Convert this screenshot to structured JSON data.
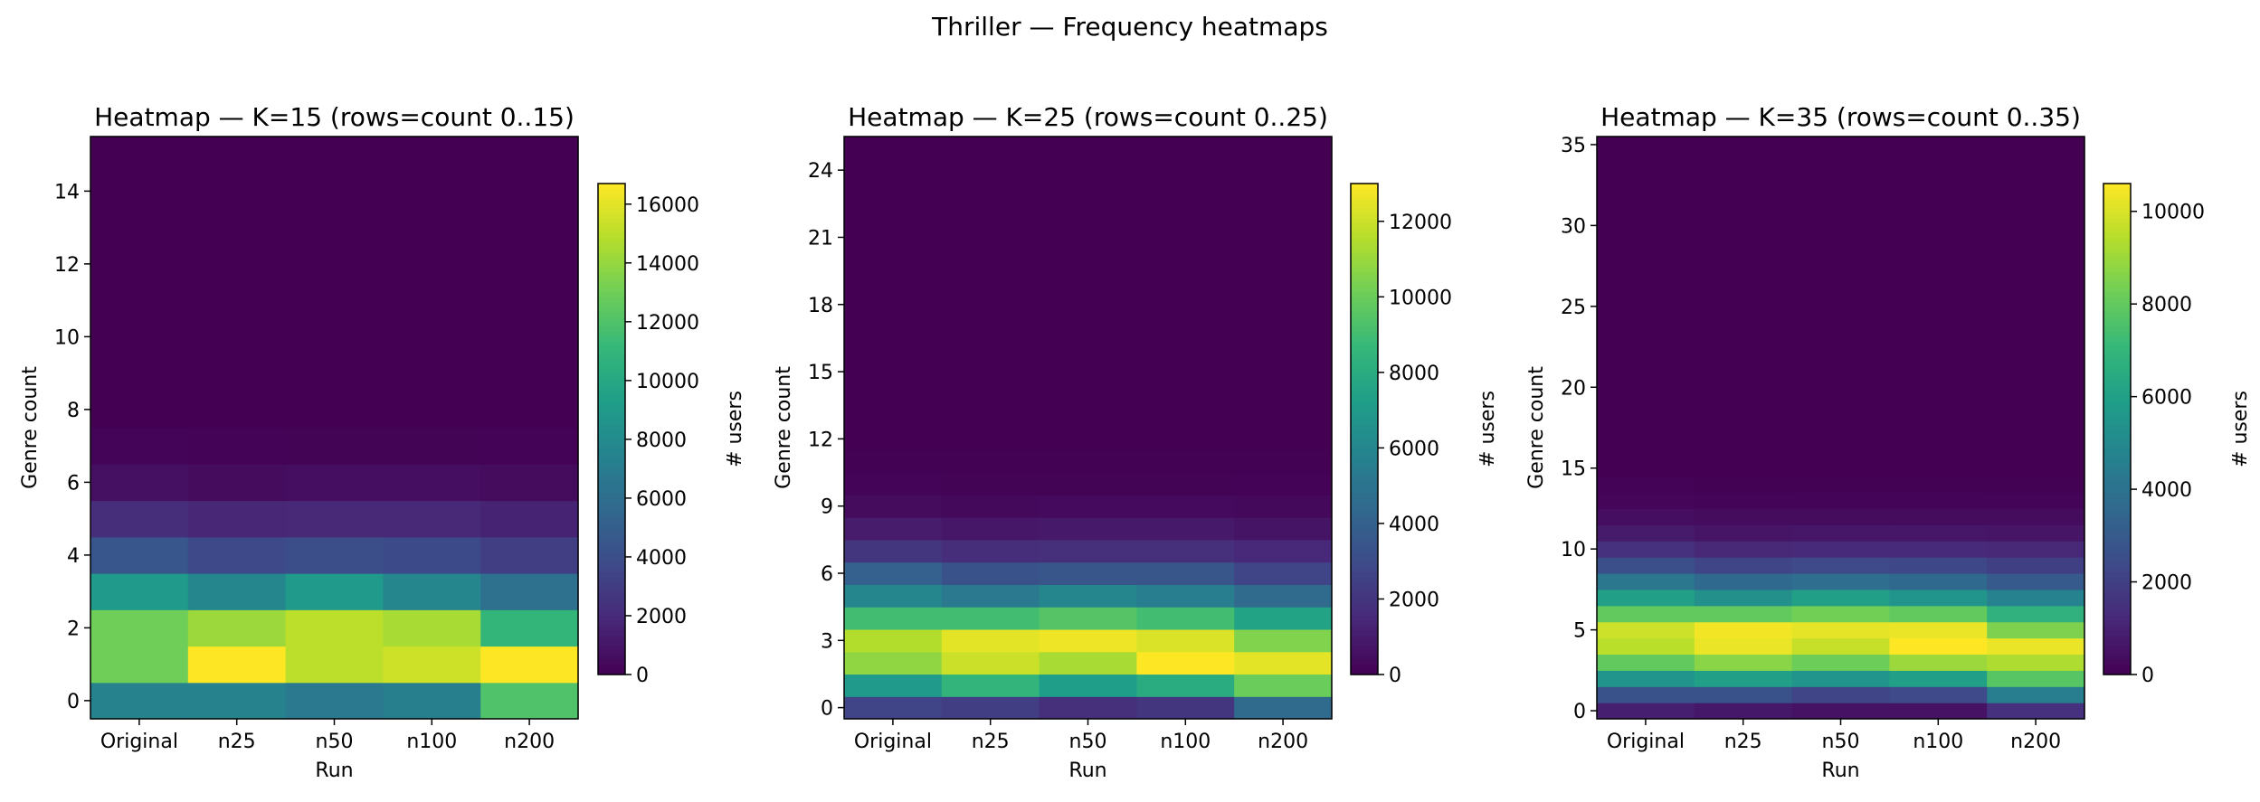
{
  "suptitle": "Thriller — Frequency heatmaps",
  "chart_data": [
    {
      "type": "heatmap",
      "title": "Heatmap — K=15 (rows=count 0..15)",
      "xlabel": "Run",
      "ylabel": "Genre count",
      "colorbar_label": "# users",
      "colormap": "viridis",
      "x_categories": [
        "Original",
        "n25",
        "n50",
        "n100",
        "n200"
      ],
      "y_range": [
        0,
        15
      ],
      "y_ticks": [
        0,
        2,
        4,
        6,
        8,
        10,
        12,
        14
      ],
      "vmin": 0,
      "vmax": 16700,
      "colorbar_ticks": [
        0,
        2000,
        4000,
        6000,
        8000,
        10000,
        12000,
        14000,
        16000
      ],
      "rows": [
        [
          7500,
          7500,
          6800,
          7200,
          12000
        ],
        [
          13000,
          16700,
          15000,
          15500,
          16700
        ],
        [
          13000,
          14200,
          15000,
          14500,
          11000
        ],
        [
          9000,
          7700,
          9000,
          7700,
          6200
        ],
        [
          4500,
          3700,
          4000,
          3800,
          3100
        ],
        [
          2200,
          1800,
          1900,
          1900,
          1600
        ],
        [
          700,
          500,
          600,
          600,
          500
        ],
        [
          150,
          100,
          120,
          120,
          90
        ],
        [
          20,
          15,
          15,
          15,
          10
        ],
        [
          5,
          3,
          3,
          3,
          2
        ],
        [
          1,
          1,
          1,
          1,
          1
        ],
        [
          0,
          0,
          0,
          0,
          0
        ],
        [
          0,
          0,
          0,
          0,
          0
        ],
        [
          0,
          0,
          0,
          0,
          0
        ],
        [
          0,
          0,
          0,
          0,
          0
        ],
        [
          0,
          0,
          0,
          0,
          0
        ]
      ]
    },
    {
      "type": "heatmap",
      "title": "Heatmap — K=25 (rows=count 0..25)",
      "xlabel": "Run",
      "ylabel": "Genre count",
      "colorbar_label": "# users",
      "colormap": "viridis",
      "x_categories": [
        "Original",
        "n25",
        "n50",
        "n100",
        "n200"
      ],
      "y_range": [
        0,
        25
      ],
      "y_ticks": [
        0,
        3,
        6,
        9,
        12,
        15,
        18,
        21,
        24
      ],
      "vmin": 0,
      "vmax": 13000,
      "colorbar_ticks": [
        0,
        2000,
        4000,
        6000,
        8000,
        10000,
        12000
      ],
      "rows": [
        [
          2700,
          2400,
          1800,
          2000,
          4500
        ],
        [
          7000,
          8500,
          7200,
          8000,
          10000
        ],
        [
          10800,
          12000,
          11300,
          13000,
          12500
        ],
        [
          11500,
          12500,
          12700,
          12300,
          10500
        ],
        [
          9000,
          9000,
          9500,
          9000,
          7500
        ],
        [
          6000,
          5300,
          6000,
          5500,
          4500
        ],
        [
          4000,
          3300,
          3500,
          3500,
          2700
        ],
        [
          2000,
          1700,
          1800,
          1800,
          1500
        ],
        [
          1000,
          800,
          900,
          900,
          700
        ],
        [
          400,
          300,
          350,
          350,
          300
        ],
        [
          150,
          100,
          100,
          100,
          80
        ],
        [
          50,
          30,
          30,
          30,
          30
        ],
        [
          10,
          5,
          5,
          5,
          5
        ],
        [
          0,
          0,
          0,
          0,
          0
        ],
        [
          0,
          0,
          0,
          0,
          0
        ],
        [
          0,
          0,
          0,
          0,
          0
        ],
        [
          0,
          0,
          0,
          0,
          0
        ],
        [
          0,
          0,
          0,
          0,
          0
        ],
        [
          0,
          0,
          0,
          0,
          0
        ],
        [
          0,
          0,
          0,
          0,
          0
        ],
        [
          0,
          0,
          0,
          0,
          0
        ],
        [
          0,
          0,
          0,
          0,
          0
        ],
        [
          0,
          0,
          0,
          0,
          0
        ],
        [
          0,
          0,
          0,
          0,
          0
        ],
        [
          0,
          0,
          0,
          0,
          0
        ],
        [
          0,
          0,
          0,
          0,
          0
        ]
      ]
    },
    {
      "type": "heatmap",
      "title": "Heatmap — K=35 (rows=count 0..35)",
      "xlabel": "Run",
      "ylabel": "Genre count",
      "colorbar_label": "# users",
      "colormap": "viridis",
      "x_categories": [
        "Original",
        "n25",
        "n50",
        "n100",
        "n200"
      ],
      "y_range": [
        0,
        35
      ],
      "y_ticks": [
        0,
        5,
        10,
        15,
        20,
        25,
        30,
        35
      ],
      "vmin": 0,
      "vmax": 10600,
      "colorbar_ticks": [
        0,
        2000,
        4000,
        6000,
        8000,
        10000
      ],
      "rows": [
        [
          900,
          700,
          500,
          500,
          1500
        ],
        [
          2700,
          2700,
          2200,
          2400,
          4500
        ],
        [
          5500,
          6000,
          5500,
          6000,
          7800
        ],
        [
          8000,
          8700,
          8200,
          9000,
          9300
        ],
        [
          9500,
          10300,
          9700,
          10600,
          10300
        ],
        [
          9800,
          10400,
          10200,
          10300,
          8500
        ],
        [
          8000,
          8000,
          8300,
          8000,
          6800
        ],
        [
          6000,
          5300,
          6000,
          5500,
          4700
        ],
        [
          4200,
          3600,
          3800,
          3600,
          3000
        ],
        [
          2600,
          2200,
          2400,
          2300,
          2000
        ],
        [
          1500,
          1200,
          1300,
          1300,
          1200
        ],
        [
          800,
          600,
          650,
          650,
          600
        ],
        [
          400,
          300,
          300,
          300,
          300
        ],
        [
          150,
          100,
          120,
          120,
          100
        ],
        [
          50,
          30,
          40,
          40,
          30
        ],
        [
          10,
          5,
          5,
          5,
          5
        ],
        [
          0,
          0,
          0,
          0,
          0
        ],
        [
          0,
          0,
          0,
          0,
          0
        ],
        [
          0,
          0,
          0,
          0,
          0
        ],
        [
          0,
          0,
          0,
          0,
          0
        ],
        [
          0,
          0,
          0,
          0,
          0
        ],
        [
          0,
          0,
          0,
          0,
          0
        ],
        [
          0,
          0,
          0,
          0,
          0
        ],
        [
          0,
          0,
          0,
          0,
          0
        ],
        [
          0,
          0,
          0,
          0,
          0
        ],
        [
          0,
          0,
          0,
          0,
          0
        ],
        [
          0,
          0,
          0,
          0,
          0
        ],
        [
          0,
          0,
          0,
          0,
          0
        ],
        [
          0,
          0,
          0,
          0,
          0
        ],
        [
          0,
          0,
          0,
          0,
          0
        ],
        [
          0,
          0,
          0,
          0,
          0
        ],
        [
          0,
          0,
          0,
          0,
          0
        ],
        [
          0,
          0,
          0,
          0,
          0
        ],
        [
          0,
          0,
          0,
          0,
          0
        ],
        [
          0,
          0,
          0,
          0,
          0
        ],
        [
          0,
          0,
          0,
          0,
          0
        ]
      ]
    }
  ]
}
